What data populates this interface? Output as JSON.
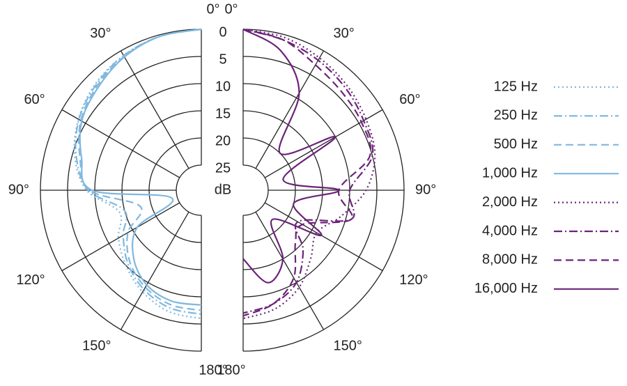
{
  "chart_data": {
    "type": "polar",
    "r_unit": "dB",
    "rlim": [
      0,
      25
    ],
    "rticks": [
      0,
      5,
      10,
      15,
      20,
      25
    ],
    "theta": [
      0,
      15,
      30,
      45,
      60,
      75,
      90,
      105,
      120,
      135,
      150,
      165,
      180
    ],
    "theta_ticks": [
      {
        "value": 0,
        "label": "0°"
      },
      {
        "value": 30,
        "label": "30°"
      },
      {
        "value": 60,
        "label": "60°"
      },
      {
        "value": 90,
        "label": "90°"
      },
      {
        "value": 120,
        "label": "120°"
      },
      {
        "value": 150,
        "label": "150°"
      },
      {
        "value": 180,
        "label": "180°"
      }
    ],
    "series": [
      {
        "name": "125 Hz",
        "color": "#7fb8df",
        "dash": "dotted",
        "side": "left",
        "values": [
          0,
          0.3,
          1,
          2,
          3.5,
          5.5,
          8.5,
          14,
          12,
          10,
          8,
          6.5,
          6
        ]
      },
      {
        "name": "250 Hz",
        "color": "#7fb8df",
        "dash": "dash-dot",
        "side": "left",
        "values": [
          0,
          0.3,
          1,
          2.2,
          3.6,
          5.8,
          8.8,
          15,
          13,
          10.5,
          8.5,
          7.2,
          6.8
        ]
      },
      {
        "name": "500 Hz",
        "color": "#7fb8df",
        "dash": "dashed",
        "side": "left",
        "values": [
          0,
          0.3,
          1.2,
          2.5,
          4,
          6.5,
          9,
          18,
          14,
          11,
          9,
          7.8,
          7.5
        ]
      },
      {
        "name": "1,000 Hz",
        "color": "#7fb8df",
        "dash": "solid",
        "side": "left",
        "values": [
          0,
          0.3,
          1.3,
          2.8,
          4.2,
          6.8,
          9.5,
          24,
          16,
          12,
          9.5,
          8.5,
          8.5
        ]
      },
      {
        "name": "2,000 Hz",
        "color": "#6b2378",
        "dash": "dotted",
        "side": "right",
        "values": [
          0,
          0.5,
          1.5,
          2.5,
          3.5,
          4.5,
          7,
          11,
          14,
          12,
          9,
          7,
          6
        ]
      },
      {
        "name": "4,000 Hz",
        "color": "#6b2378",
        "dash": "dash-dot",
        "side": "right",
        "values": [
          0,
          1,
          2,
          3,
          4,
          5,
          10,
          9,
          18,
          14,
          10,
          8,
          7
        ]
      },
      {
        "name": "8,000 Hz",
        "color": "#6b2378",
        "dash": "dashed",
        "side": "right",
        "values": [
          0,
          1,
          3,
          4,
          4.5,
          5.5,
          12,
          9,
          17,
          16,
          11,
          8,
          6.5
        ]
      },
      {
        "name": "16,000 Hz",
        "color": "#6b2378",
        "dash": "solid",
        "side": "right",
        "values": [
          0,
          3,
          9,
          20,
          10,
          22,
          12,
          20,
          13,
          22,
          15,
          12,
          17
        ]
      }
    ]
  }
}
